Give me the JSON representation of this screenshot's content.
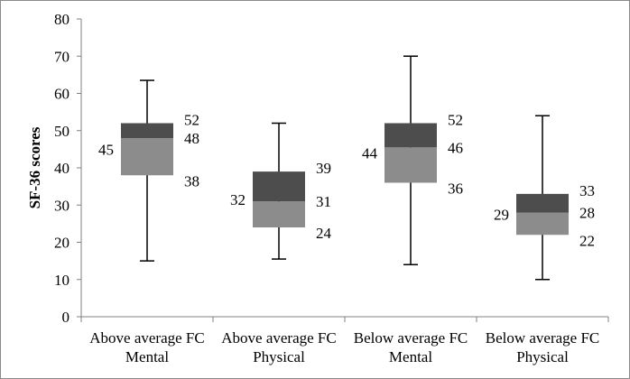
{
  "chart_data": {
    "type": "box",
    "ylabel": "SF-36 scores",
    "xlabel": "",
    "ylim": [
      0,
      80
    ],
    "yticks": [
      0,
      10,
      20,
      30,
      40,
      50,
      60,
      70,
      80
    ],
    "grid": false,
    "colors": {
      "upper_box": "#4d4d4d",
      "lower_box": "#8c8c8c",
      "whisker": "#000000",
      "axis": "#808080"
    },
    "categories": [
      {
        "line1": "Above average FC",
        "line2": "Mental",
        "min": 15,
        "q1": 38,
        "median": 48,
        "q3": 52,
        "max": 63.5,
        "labels": {
          "q3": "52",
          "median": "48",
          "q1": "38",
          "left": "45"
        }
      },
      {
        "line1": "Above average FC",
        "line2": "Physical",
        "min": 15.5,
        "q1": 24,
        "median": 31,
        "q3": 39,
        "max": 52,
        "labels": {
          "q3": "39",
          "median": "31",
          "q1": "24",
          "left": "32"
        }
      },
      {
        "line1": "Below average FC",
        "line2": "Mental",
        "min": 14,
        "q1": 36,
        "median": 45.5,
        "q3": 52,
        "max": 70,
        "labels": {
          "q3": "52",
          "median": "46",
          "q1": "36",
          "left": "44"
        }
      },
      {
        "line1": "Below average FC",
        "line2": "Physical",
        "min": 10,
        "q1": 22,
        "median": 28,
        "q3": 33,
        "max": 54,
        "labels": {
          "q3": "33",
          "median": "28",
          "q1": "22",
          "left": "29"
        }
      }
    ]
  }
}
